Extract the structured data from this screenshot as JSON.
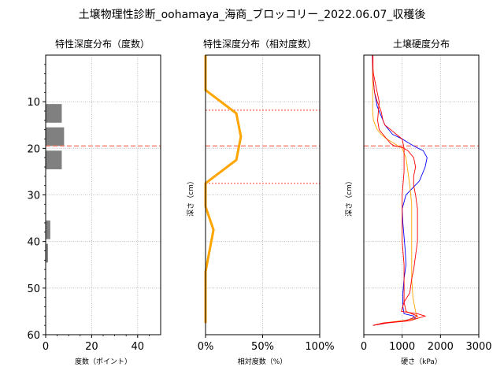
{
  "figure": {
    "title": "土壌物理性診断_oohamaya_海商_ブロッコリー_2022.06.07_収穫後"
  },
  "chart_data": [
    {
      "type": "bar",
      "orientation": "horizontal",
      "title": "特性深度分布（度数）",
      "xlabel": "度数（ポイント）",
      "ylabel": "",
      "xlim": [
        0,
        50
      ],
      "ylim": [
        60,
        0
      ],
      "xticks": [
        0,
        20,
        40
      ],
      "yticks": [
        10,
        20,
        30,
        40,
        50,
        60
      ],
      "grid": true,
      "bar_color": "#808080",
      "reference_line": {
        "depth": 19.5,
        "color": "#fa8072",
        "style": "dashed"
      },
      "bars": [
        {
          "depth_from": 0.5,
          "depth_to": 4.5,
          "value": 0
        },
        {
          "depth_from": 5.5,
          "depth_to": 9.5,
          "value": 0
        },
        {
          "depth_from": 10.5,
          "depth_to": 14.5,
          "value": 7
        },
        {
          "depth_from": 15.5,
          "depth_to": 19.5,
          "value": 8
        },
        {
          "depth_from": 20.5,
          "depth_to": 24.5,
          "value": 7
        },
        {
          "depth_from": 25.5,
          "depth_to": 29.5,
          "value": 0
        },
        {
          "depth_from": 30.5,
          "depth_to": 34.5,
          "value": 0
        },
        {
          "depth_from": 35.5,
          "depth_to": 39.5,
          "value": 2
        },
        {
          "depth_from": 40.5,
          "depth_to": 44.5,
          "value": 1
        },
        {
          "depth_from": 45.5,
          "depth_to": 49.5,
          "value": 0
        },
        {
          "depth_from": 50.5,
          "depth_to": 54.5,
          "value": 0
        },
        {
          "depth_from": 55.5,
          "depth_to": 59.5,
          "value": 0
        }
      ]
    },
    {
      "type": "line",
      "title": "特性深度分布（相対度数）",
      "xlabel": "相対度数（%）",
      "ylabel": "深さ（cm）",
      "xlim": [
        0,
        100
      ],
      "ylim": [
        60,
        0
      ],
      "xticks": [
        "0%",
        "50%",
        "100%"
      ],
      "grid": true,
      "line_color": "#ffa500",
      "reference_lines": [
        {
          "depth": 11.8,
          "color": "#fa8072",
          "style": "dotted"
        },
        {
          "depth": 19.5,
          "color": "#fa8072",
          "style": "dashed"
        },
        {
          "depth": 27.5,
          "color": "#fa8072",
          "style": "dotted"
        }
      ],
      "points": [
        {
          "x": 0,
          "depth": 0
        },
        {
          "x": 0,
          "depth": 7.5
        },
        {
          "x": 27,
          "depth": 12.5
        },
        {
          "x": 31,
          "depth": 17.5
        },
        {
          "x": 27,
          "depth": 22.5
        },
        {
          "x": 0,
          "depth": 27.5
        },
        {
          "x": 0,
          "depth": 32.5
        },
        {
          "x": 7,
          "depth": 37.5
        },
        {
          "x": 0,
          "depth": 46.5
        },
        {
          "x": 0,
          "depth": 57.5
        }
      ]
    },
    {
      "type": "line",
      "title": "土壌硬度分布",
      "xlabel": "硬さ（kPa）",
      "ylabel": "深さ（cm）",
      "xlim": [
        0,
        3000
      ],
      "ylim": [
        60,
        0
      ],
      "xticks": [
        0,
        1000,
        2000,
        3000
      ],
      "grid": true,
      "reference_line": {
        "depth": 19.5,
        "color": "#fa8072",
        "style": "dashed"
      },
      "series": [
        {
          "color": "#0000ff",
          "points": [
            [
              220,
              0
            ],
            [
              230,
              4
            ],
            [
              280,
              8
            ],
            [
              350,
              11
            ],
            [
              450,
              13
            ],
            [
              550,
              15
            ],
            [
              750,
              17
            ],
            [
              1000,
              18
            ],
            [
              1300,
              19.5
            ],
            [
              1550,
              20.5
            ],
            [
              1650,
              22
            ],
            [
              1600,
              24
            ],
            [
              1450,
              27
            ],
            [
              1100,
              30
            ],
            [
              1000,
              33
            ],
            [
              1020,
              36
            ],
            [
              1050,
              39
            ],
            [
              1080,
              42
            ],
            [
              1100,
              45
            ],
            [
              1050,
              48
            ],
            [
              1020,
              51
            ],
            [
              1020,
              54
            ],
            [
              1050,
              55.5
            ],
            [
              1300,
              56
            ],
            [
              1350,
              56.5
            ],
            [
              1000,
              57
            ],
            [
              600,
              57.5
            ],
            [
              240,
              58
            ]
          ]
        },
        {
          "color": "#ffa500",
          "points": [
            [
              230,
              0
            ],
            [
              230,
              5
            ],
            [
              230,
              9
            ],
            [
              230,
              12
            ],
            [
              250,
              14
            ],
            [
              350,
              16
            ],
            [
              450,
              17
            ],
            [
              600,
              18
            ],
            [
              800,
              19
            ],
            [
              1000,
              20
            ],
            [
              1100,
              22
            ],
            [
              1150,
              25
            ],
            [
              1200,
              28
            ],
            [
              1250,
              32
            ],
            [
              1250,
              36
            ],
            [
              1250,
              40
            ],
            [
              1250,
              44
            ],
            [
              1250,
              48
            ],
            [
              1280,
              52
            ],
            [
              1350,
              55
            ],
            [
              1400,
              56.5
            ],
            [
              1000,
              57
            ],
            [
              500,
              57.5
            ],
            [
              240,
              58
            ]
          ]
        },
        {
          "color": "#ff0000",
          "points": [
            [
              230,
              0
            ],
            [
              230,
              2
            ],
            [
              250,
              4
            ],
            [
              300,
              6
            ],
            [
              350,
              8
            ],
            [
              400,
              10
            ],
            [
              380,
              12
            ],
            [
              360,
              14
            ],
            [
              400,
              16
            ],
            [
              500,
              17
            ],
            [
              600,
              18
            ],
            [
              700,
              19
            ],
            [
              800,
              19.5
            ],
            [
              1000,
              19.8
            ],
            [
              1150,
              20.5
            ],
            [
              1300,
              22
            ],
            [
              1350,
              24
            ],
            [
              1300,
              26
            ],
            [
              1300,
              28
            ],
            [
              1350,
              30
            ],
            [
              1400,
              33
            ],
            [
              1400,
              37
            ],
            [
              1400,
              40
            ],
            [
              1350,
              43
            ],
            [
              1300,
              46
            ],
            [
              1250,
              48
            ],
            [
              1200,
              51
            ],
            [
              1050,
              53
            ],
            [
              980,
              55
            ],
            [
              1400,
              55.5
            ],
            [
              1600,
              56
            ],
            [
              1200,
              57
            ],
            [
              600,
              57.5
            ],
            [
              240,
              58
            ]
          ]
        },
        {
          "color": "#ff0000",
          "points": [
            [
              240,
              0
            ],
            [
              240,
              5
            ],
            [
              280,
              8
            ],
            [
              350,
              10
            ],
            [
              450,
              12
            ],
            [
              500,
              14
            ],
            [
              550,
              15
            ],
            [
              700,
              16
            ],
            [
              850,
              17
            ],
            [
              1000,
              18
            ],
            [
              1050,
              20
            ],
            [
              1050,
              22
            ],
            [
              1050,
              25
            ],
            [
              1000,
              30
            ],
            [
              1000,
              35
            ],
            [
              1000,
              40
            ],
            [
              1050,
              45
            ],
            [
              1050,
              50
            ],
            [
              1050,
              53
            ],
            [
              1100,
              55
            ],
            [
              1400,
              56
            ],
            [
              1100,
              57
            ],
            [
              500,
              57.5
            ],
            [
              240,
              58
            ]
          ]
        }
      ]
    }
  ]
}
